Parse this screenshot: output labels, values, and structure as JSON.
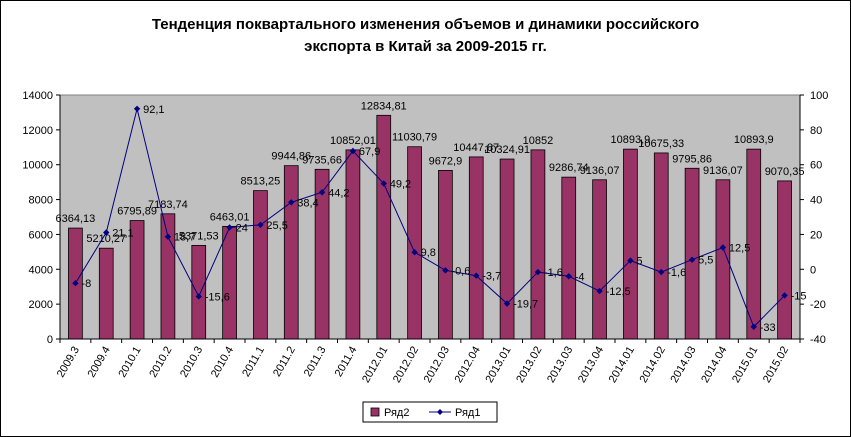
{
  "title_line1": "Тенденция поквартального изменения объемов и динамики российского",
  "title_line2": "экспорта в Китай за 2009-2015 гг.",
  "colors": {
    "bar": "#993366",
    "line": "#000080",
    "plot_bg": "#c0c0c0"
  },
  "chart_data": {
    "type": "bar+line",
    "categories": [
      "2009.3",
      "2009.4",
      "2010.1",
      "2010.2",
      "2010.3",
      "2010.4",
      "2011.1",
      "2011.2",
      "2011.3",
      "2011.4",
      "2012.01",
      "2012.02",
      "2012.03",
      "2012.04",
      "2013.01",
      "2013.02",
      "2013.03",
      "2013.04",
      "2014.01",
      "2014.02",
      "2014.03",
      "2014.04",
      "2015.01",
      "2015.02"
    ],
    "series": [
      {
        "name": "Ряд2",
        "type": "bar",
        "axis": "left",
        "values": [
          6364.13,
          5210.27,
          6795.89,
          7183.74,
          5371.53,
          6463.01,
          8513.25,
          9944.86,
          9735.66,
          10852.01,
          12834.81,
          11030.79,
          9672.9,
          10447.87,
          10324.91,
          10852,
          9286.74,
          9136.07,
          10893.9,
          10675.33,
          9795.86,
          9136.07,
          10893.9,
          9070.35
        ],
        "labels": [
          "6364,13",
          "5210,27",
          "6795,89",
          "7183,74",
          "5371,53",
          "6463,01",
          "8513,25",
          "9944,86",
          "9735,66",
          "10852,01",
          "12834,81",
          "11030,79",
          "9672,9",
          "10447,87",
          "10324,91",
          "10852",
          "9286,74",
          "9136,07",
          "10893,9",
          "10675,33",
          "9795,86",
          "9136,07",
          "10893,9",
          "9070,35"
        ]
      },
      {
        "name": "Ряд1",
        "type": "line",
        "axis": "right",
        "values": [
          -8,
          21.1,
          92.1,
          18.7,
          -15.6,
          24,
          25.5,
          38.4,
          44.2,
          67.9,
          49.2,
          9.8,
          -0.6,
          -3.7,
          -19.7,
          -1.6,
          -4,
          -12.5,
          5,
          -1.6,
          5.5,
          12.5,
          -33,
          -15
        ],
        "labels": [
          "-8",
          "21,1",
          "92,1",
          "18,7",
          "-15,6",
          "24",
          "25,5",
          "38,4",
          "44,2",
          "67,9",
          "49,2",
          "9,8",
          "-0,6",
          "-3,7",
          "-19,7",
          "-1,6",
          "-4",
          "-12,5",
          "5",
          "-1,6",
          "5,5",
          "12,5",
          "-33",
          "-15"
        ]
      }
    ],
    "y_left": {
      "min": 0,
      "max": 14000,
      "ticks": [
        0,
        2000,
        4000,
        6000,
        8000,
        10000,
        12000,
        14000
      ]
    },
    "y_right": {
      "min": -40,
      "max": 100,
      "ticks": [
        -40,
        -20,
        0,
        20,
        40,
        60,
        80,
        100
      ]
    },
    "grid": false,
    "legend": "bottom"
  }
}
